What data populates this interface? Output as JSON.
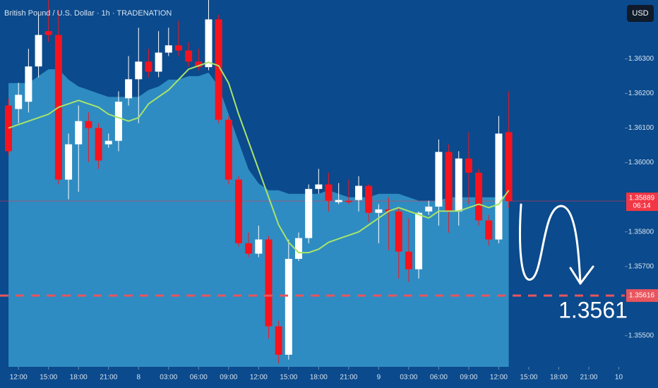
{
  "chart_data": {
    "type": "candlestick",
    "title": "British Pound / U.S. Dollar · 1h · TRADENATION",
    "currency": "USD",
    "annotation": "1.3561",
    "up_color": "#ffffff",
    "down_color": "#f7131d",
    "open": [
      1.36165,
      1.36155,
      1.36176,
      1.36278,
      1.3638,
      1.36369,
      1.35951,
      1.36053,
      1.3612,
      1.361,
      1.36053,
      1.36063,
      1.36186,
      1.36241,
      1.36292,
      1.36263,
      1.36318,
      1.36339,
      1.36324,
      1.36292,
      1.36276,
      1.36414,
      1.36124,
      1.35951,
      1.35767,
      1.35737,
      1.35778,
      1.35527,
      1.35445,
      1.35722,
      1.35782,
      1.35924,
      1.35937,
      1.35886,
      1.3589,
      1.35892,
      1.35933,
      1.35855,
      1.35865,
      1.35859,
      1.35743,
      1.35692,
      1.35859,
      1.35873,
      1.36031,
      1.35859,
      1.36012,
      1.35971,
      1.35833,
      1.35778,
      1.36088
    ],
    "high": [
      1.36186,
      1.36231,
      1.36329,
      1.36431,
      1.3647,
      1.36441,
      1.36084,
      1.36165,
      1.36145,
      1.36114,
      1.36084,
      1.36206,
      1.36308,
      1.3639,
      1.36329,
      1.3638,
      1.3639,
      1.3641,
      1.36349,
      1.36329,
      1.3647,
      1.36427,
      1.36135,
      1.35961,
      1.35798,
      1.35818,
      1.35788,
      1.35543,
      1.35778,
      1.35798,
      1.35937,
      1.35982,
      1.35971,
      1.35941,
      1.35951,
      1.35961,
      1.35937,
      1.3588,
      1.359,
      1.35869,
      1.35839,
      1.35859,
      1.3589,
      1.36067,
      1.36053,
      1.36033,
      1.36088,
      1.35982,
      1.35849,
      1.36135,
      1.36206
    ],
    "low": [
      1.36022,
      1.36114,
      1.36145,
      1.36247,
      1.36349,
      1.35937,
      1.35894,
      1.35916,
      1.36002,
      1.35982,
      1.36043,
      1.36033,
      1.36165,
      1.36114,
      1.36247,
      1.36247,
      1.36308,
      1.36308,
      1.36278,
      1.36267,
      1.36267,
      1.36114,
      1.35937,
      1.35757,
      1.35727,
      1.35727,
      1.35492,
      1.3542,
      1.35431,
      1.35716,
      1.35767,
      1.3591,
      1.35859,
      1.3588,
      1.3588,
      1.35859,
      1.35829,
      1.35767,
      1.35747,
      1.35665,
      1.35655,
      1.35665,
      1.35849,
      1.35818,
      1.35798,
      1.35818,
      1.3588,
      1.35818,
      1.35761,
      1.35767,
      1.35869
    ],
    "close": [
      1.36033,
      1.36196,
      1.36278,
      1.36369,
      1.36369,
      1.35951,
      1.36053,
      1.3612,
      1.361,
      1.36006,
      1.36063,
      1.36176,
      1.36241,
      1.36292,
      1.36263,
      1.36318,
      1.36339,
      1.36324,
      1.36292,
      1.36276,
      1.36414,
      1.36124,
      1.35951,
      1.35767,
      1.35737,
      1.35778,
      1.35527,
      1.35445,
      1.35722,
      1.35782,
      1.35924,
      1.35937,
      1.3589,
      1.35892,
      1.35886,
      1.35933,
      1.35855,
      1.35865,
      1.35859,
      1.35743,
      1.35692,
      1.35855,
      1.35873,
      1.36031,
      1.35859,
      1.36012,
      1.35971,
      1.35833,
      1.35778,
      1.36084,
      1.35889
    ],
    "ma": {
      "color": "#a8e36a",
      "values": [
        1.361,
        1.3611,
        1.3612,
        1.3613,
        1.3614,
        1.3616,
        1.3617,
        1.3618,
        1.3617,
        1.3616,
        1.3614,
        1.3613,
        1.3612,
        1.3613,
        1.3617,
        1.3619,
        1.3621,
        1.3624,
        1.3627,
        1.3628,
        1.3629,
        1.3628,
        1.3623,
        1.3614,
        1.3606,
        1.3598,
        1.359,
        1.3582,
        1.3577,
        1.3574,
        1.3574,
        1.3575,
        1.3577,
        1.3578,
        1.3579,
        1.358,
        1.3582,
        1.3584,
        1.3586,
        1.3587,
        1.3586,
        1.3585,
        1.3584,
        1.3586,
        1.3586,
        1.3586,
        1.3587,
        1.3588,
        1.3587,
        1.3588,
        1.3592
      ]
    },
    "area": {
      "color": "#2e8cc2",
      "values": [
        1.3623,
        1.3623,
        1.3623,
        1.3625,
        1.3627,
        1.3627,
        1.3624,
        1.3622,
        1.3621,
        1.362,
        1.3619,
        1.3619,
        1.3619,
        1.3619,
        1.3621,
        1.3622,
        1.3624,
        1.3624,
        1.3625,
        1.3625,
        1.3626,
        1.3622,
        1.3614,
        1.3606,
        1.3598,
        1.3594,
        1.3592,
        1.3592,
        1.3591,
        1.3591,
        1.3591,
        1.3591,
        1.3592,
        1.3591,
        1.359,
        1.359,
        1.359,
        1.3591,
        1.3591,
        1.3591,
        1.359,
        1.3589,
        1.3589,
        1.3589,
        1.359,
        1.359,
        1.359,
        1.359,
        1.359,
        1.359,
        1.3591
      ]
    },
    "price_line": {
      "value": 1.35889,
      "label": "1.35889",
      "countdown": "06:14",
      "color": "#f23645"
    },
    "level_line": {
      "value": 1.35616,
      "label": "1.35616",
      "color": "#e8555e"
    },
    "xlim": [
      -0.85,
      61.6
    ],
    "ylim": [
      1.3541,
      1.3647
    ],
    "xticks": [
      {
        "value": 1,
        "label": "12:00"
      },
      {
        "value": 4,
        "label": "15:00"
      },
      {
        "value": 7,
        "label": "18:00"
      },
      {
        "value": 10,
        "label": "21:00"
      },
      {
        "value": 13,
        "label": "8"
      },
      {
        "value": 16,
        "label": "03:00"
      },
      {
        "value": 19,
        "label": "06:00"
      },
      {
        "value": 22,
        "label": "09:00"
      },
      {
        "value": 25,
        "label": "12:00"
      },
      {
        "value": 28,
        "label": "15:00"
      },
      {
        "value": 31,
        "label": "18:00"
      },
      {
        "value": 34,
        "label": "21:00"
      },
      {
        "value": 37,
        "label": "9"
      },
      {
        "value": 40,
        "label": "03:00"
      },
      {
        "value": 43,
        "label": "06:00"
      },
      {
        "value": 46,
        "label": "09:00"
      },
      {
        "value": 49,
        "label": "12:00"
      },
      {
        "value": 52,
        "label": "15:00"
      },
      {
        "value": 55,
        "label": "18:00"
      },
      {
        "value": 58,
        "label": "21:00"
      },
      {
        "value": 61,
        "label": "10"
      }
    ],
    "yticks": [
      {
        "value": 1.363,
        "label": "1.36300"
      },
      {
        "value": 1.362,
        "label": "1.36200"
      },
      {
        "value": 1.361,
        "label": "1.36100"
      },
      {
        "value": 1.36,
        "label": "1.36000"
      },
      {
        "value": 1.358,
        "label": "1.35800"
      },
      {
        "value": 1.357,
        "label": "1.35700"
      },
      {
        "value": 1.355,
        "label": "1.35500"
      }
    ]
  }
}
